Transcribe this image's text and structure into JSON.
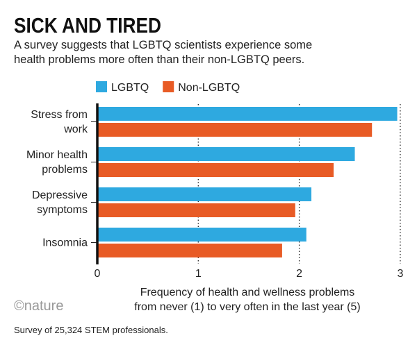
{
  "title": "SICK AND TIRED",
  "subtitle_lines": [
    "A survey suggests that LGBTQ scientists experience some",
    "health problems more often than their non-LGBTQ peers."
  ],
  "logo": "©nature",
  "footnote": "Survey of 25,324 STEM professionals.",
  "chart_data": {
    "type": "bar",
    "orientation": "horizontal",
    "categories": [
      [
        "Stress from",
        "work"
      ],
      [
        "Minor health",
        "problems"
      ],
      [
        "Depressive",
        "symptoms"
      ],
      [
        "Insomnia"
      ]
    ],
    "series": [
      {
        "name": "LGBTQ",
        "color": "#2ea9e0",
        "values": [
          2.97,
          2.55,
          2.12,
          2.07
        ]
      },
      {
        "name": "Non-LGBTQ",
        "color": "#e85b25",
        "values": [
          2.72,
          2.34,
          1.96,
          1.83
        ]
      }
    ],
    "xlabel_lines": [
      "Frequency of health and wellness problems",
      "from never (1) to very often in the last year (5)"
    ],
    "xlim": [
      0,
      3
    ],
    "xticks": [
      0,
      1,
      2,
      3
    ],
    "grid": "dotted vertical",
    "legend": "top-left"
  }
}
